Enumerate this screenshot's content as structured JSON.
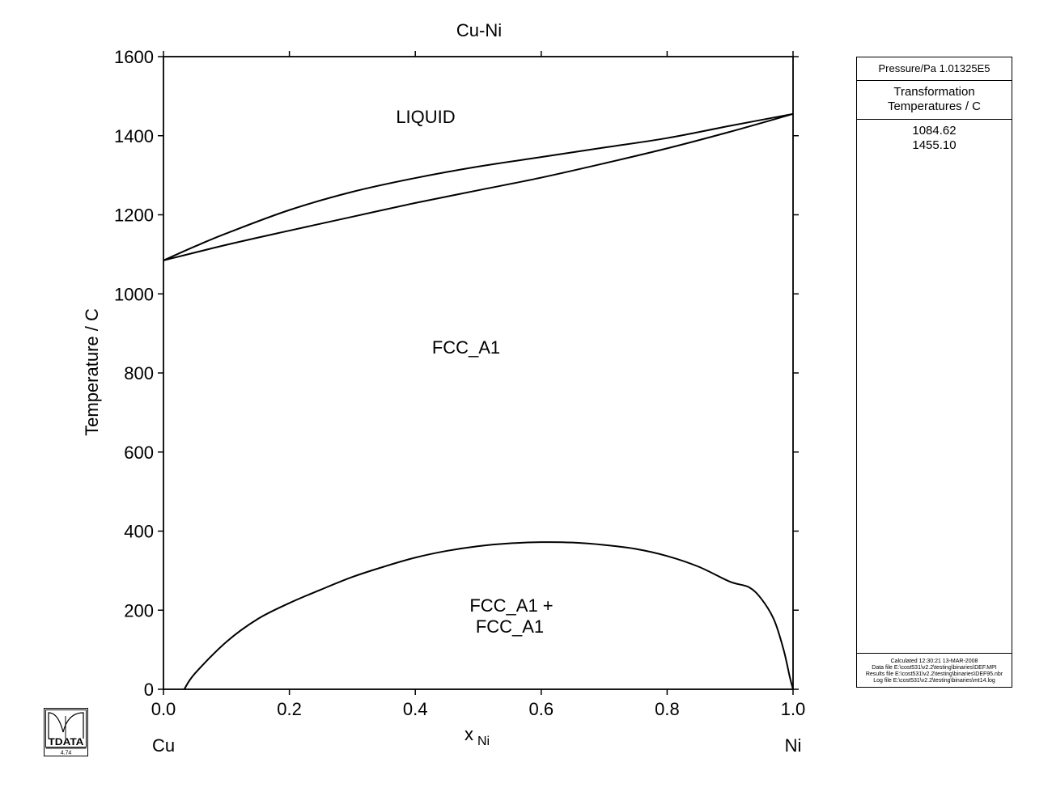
{
  "chart_data": {
    "type": "line",
    "title": "Cu-Ni",
    "ylabel": "Temperature / C",
    "xlabel_main": "x",
    "xlabel_sub": "Ni",
    "left_element": "Cu",
    "right_element": "Ni",
    "xlim": [
      0.0,
      1.0
    ],
    "ylim": [
      0,
      1600
    ],
    "x_ticks": [
      "0.0",
      "0.2",
      "0.4",
      "0.6",
      "0.8",
      "1.0"
    ],
    "y_ticks": [
      "0",
      "200",
      "400",
      "600",
      "800",
      "1000",
      "1200",
      "1400",
      "1600"
    ],
    "region_labels": {
      "liquid": "LIQUID",
      "fcc": "FCC_A1",
      "fcc_fcc_line1": "FCC_A1 +",
      "fcc_fcc_line2": "FCC_A1"
    },
    "series": [
      {
        "x": [
          0.0,
          0.05,
          0.1,
          0.2,
          0.3,
          0.4,
          0.5,
          0.6,
          0.7,
          0.8,
          0.9,
          1.0
        ],
        "y": [
          1084.62,
          1120,
          1153,
          1212,
          1258,
          1293,
          1322,
          1346,
          1370,
          1394,
          1425,
          1455.1
        ]
      },
      {
        "x": [
          0.0,
          0.1,
          0.2,
          0.3,
          0.4,
          0.5,
          0.6,
          0.7,
          0.8,
          0.9,
          1.0
        ],
        "y": [
          1084.62,
          1124,
          1160,
          1195,
          1230,
          1262,
          1294,
          1330,
          1368,
          1410,
          1455.1
        ]
      },
      {
        "x": [
          0.033,
          0.05,
          0.1,
          0.15,
          0.2,
          0.25,
          0.3,
          0.35,
          0.4,
          0.45,
          0.5,
          0.55,
          0.6,
          0.65,
          0.7,
          0.75,
          0.8,
          0.85,
          0.9,
          0.93,
          0.95,
          0.97,
          0.985,
          0.995,
          1.0
        ],
        "y": [
          0,
          40,
          120,
          178,
          218,
          252,
          284,
          310,
          333,
          350,
          362,
          369,
          372,
          371,
          365,
          355,
          337,
          310,
          272,
          258,
          228,
          175,
          100,
          30,
          0
        ]
      }
    ]
  },
  "info_panel": {
    "pressure": "Pressure/Pa  1.01325E5",
    "transformation_line1": "Transformation",
    "transformation_line2": "Temperatures / C",
    "temperatures": [
      "1084.62",
      "1455.10"
    ],
    "footer_lines": [
      "Calculated  12:30:21  13-MAR-2008",
      "Data file  E:\\cost531\\v2.2\\testing\\binaries\\DEF.MPI",
      "Results file  E:\\cost531\\v2.2\\testing\\binaries\\DEF95.nbr",
      "Log file  E:\\cost531\\v2.2\\testing\\binaries\\mt14.log"
    ]
  },
  "logo": {
    "text": "TDATA",
    "version": "4.74"
  }
}
